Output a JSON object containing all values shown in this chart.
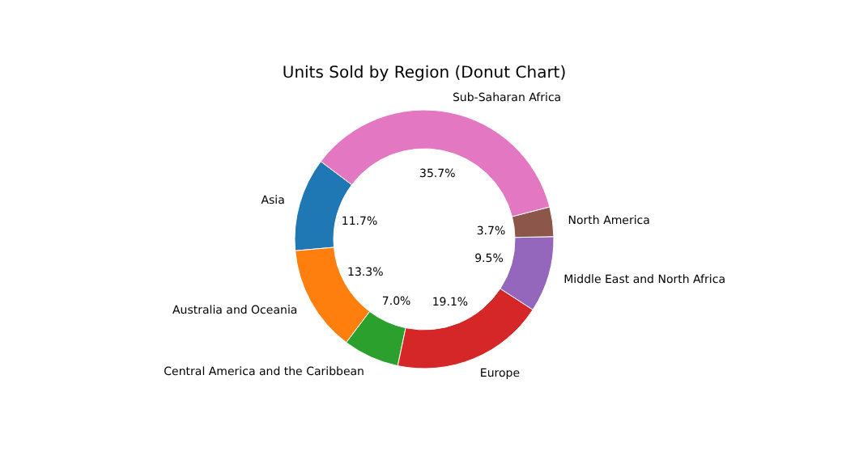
{
  "chart_data": {
    "type": "donut",
    "title": "Units Sold by Region (Donut Chart)",
    "categories": [
      "Asia",
      "Australia and Oceania",
      "Central America and the Caribbean",
      "Europe",
      "Middle East and North Africa",
      "North America",
      "Sub-Saharan Africa"
    ],
    "values": [
      11.7,
      13.3,
      7.0,
      19.1,
      9.5,
      3.7,
      35.7
    ],
    "value_labels": [
      "11.7%",
      "13.3%",
      "7.0%",
      "19.1%",
      "9.5%",
      "3.7%",
      "35.7%"
    ],
    "colors": [
      "#1f77b4",
      "#ff7f0e",
      "#2ca02c",
      "#d62728",
      "#9467bd",
      "#8c564b",
      "#e377c2"
    ]
  }
}
